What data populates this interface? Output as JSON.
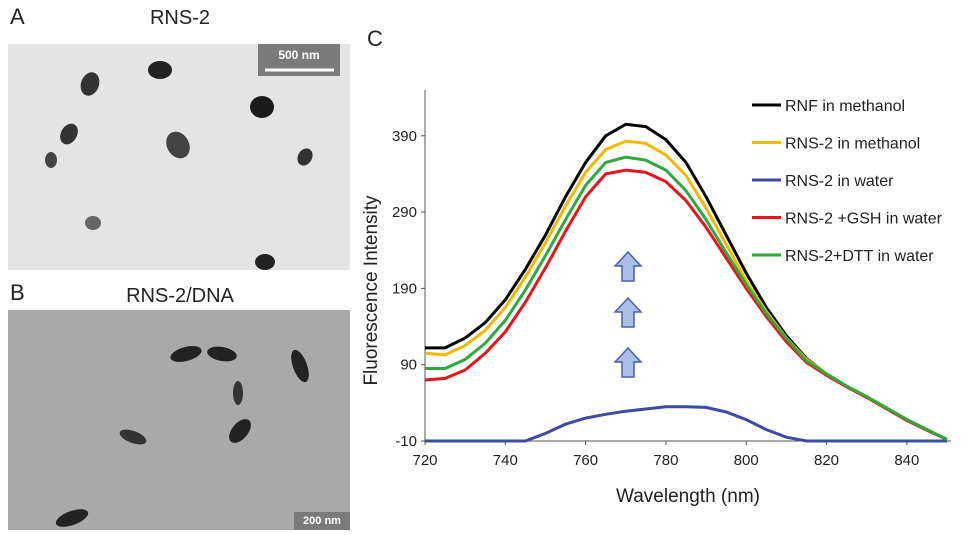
{
  "panels": [
    {
      "label": "A",
      "title": "RNS-2",
      "scale_bar": "500 nm"
    },
    {
      "label": "B",
      "title": "RNS-2/DNA",
      "scale_bar": "200 nm"
    },
    {
      "label": "C"
    }
  ],
  "chart_data": {
    "type": "line",
    "xlabel": "Wavelength (nm)",
    "ylabel": "Fluorescence Intensity",
    "x": [
      720,
      725,
      730,
      735,
      740,
      745,
      750,
      755,
      760,
      765,
      770,
      775,
      780,
      785,
      790,
      795,
      800,
      805,
      810,
      815,
      820,
      825,
      830,
      835,
      840,
      845,
      850
    ],
    "xlim": [
      720,
      851
    ],
    "xticks": [
      720,
      740,
      760,
      780,
      800,
      820,
      840
    ],
    "ylim": [
      -10,
      450
    ],
    "yticks": [
      -10,
      90,
      190,
      290,
      390
    ],
    "legend": "top-right",
    "series": [
      {
        "name": "RNF in methanol",
        "color": "#000000",
        "values": [
          112,
          112,
          125,
          145,
          175,
          215,
          260,
          310,
          355,
          390,
          405,
          402,
          385,
          355,
          310,
          260,
          210,
          165,
          128,
          98,
          78,
          62,
          48,
          33,
          18,
          5,
          -8
        ]
      },
      {
        "name": "RNS-2 in methanol",
        "color": "#f5b800",
        "values": [
          105,
          103,
          115,
          135,
          165,
          205,
          250,
          298,
          342,
          372,
          383,
          380,
          365,
          338,
          295,
          248,
          200,
          160,
          125,
          97,
          78,
          62,
          48,
          33,
          18,
          5,
          -8
        ]
      },
      {
        "name": "RNS-2 in water",
        "color": "#3b4ba6",
        "values": [
          -10,
          -10,
          -10,
          -10,
          -10,
          -10,
          0,
          12,
          20,
          25,
          29,
          32,
          35,
          35,
          34,
          28,
          18,
          5,
          -5,
          -10,
          -10,
          -10,
          -10,
          -10,
          -10,
          -10,
          -10
        ]
      },
      {
        "name": "RNS-2 +GSH in water",
        "color": "#e8141c",
        "values": [
          70,
          72,
          83,
          105,
          133,
          172,
          217,
          265,
          310,
          340,
          345,
          342,
          330,
          305,
          270,
          230,
          190,
          153,
          120,
          93,
          76,
          61,
          47,
          32,
          17,
          4,
          -8
        ]
      },
      {
        "name": "RNS-2+DTT in water",
        "color": "#2eaa3c",
        "values": [
          85,
          85,
          97,
          118,
          148,
          188,
          233,
          280,
          325,
          355,
          362,
          358,
          345,
          318,
          280,
          237,
          195,
          157,
          124,
          95,
          78,
          62,
          48,
          33,
          18,
          5,
          -8
        ]
      }
    ]
  }
}
